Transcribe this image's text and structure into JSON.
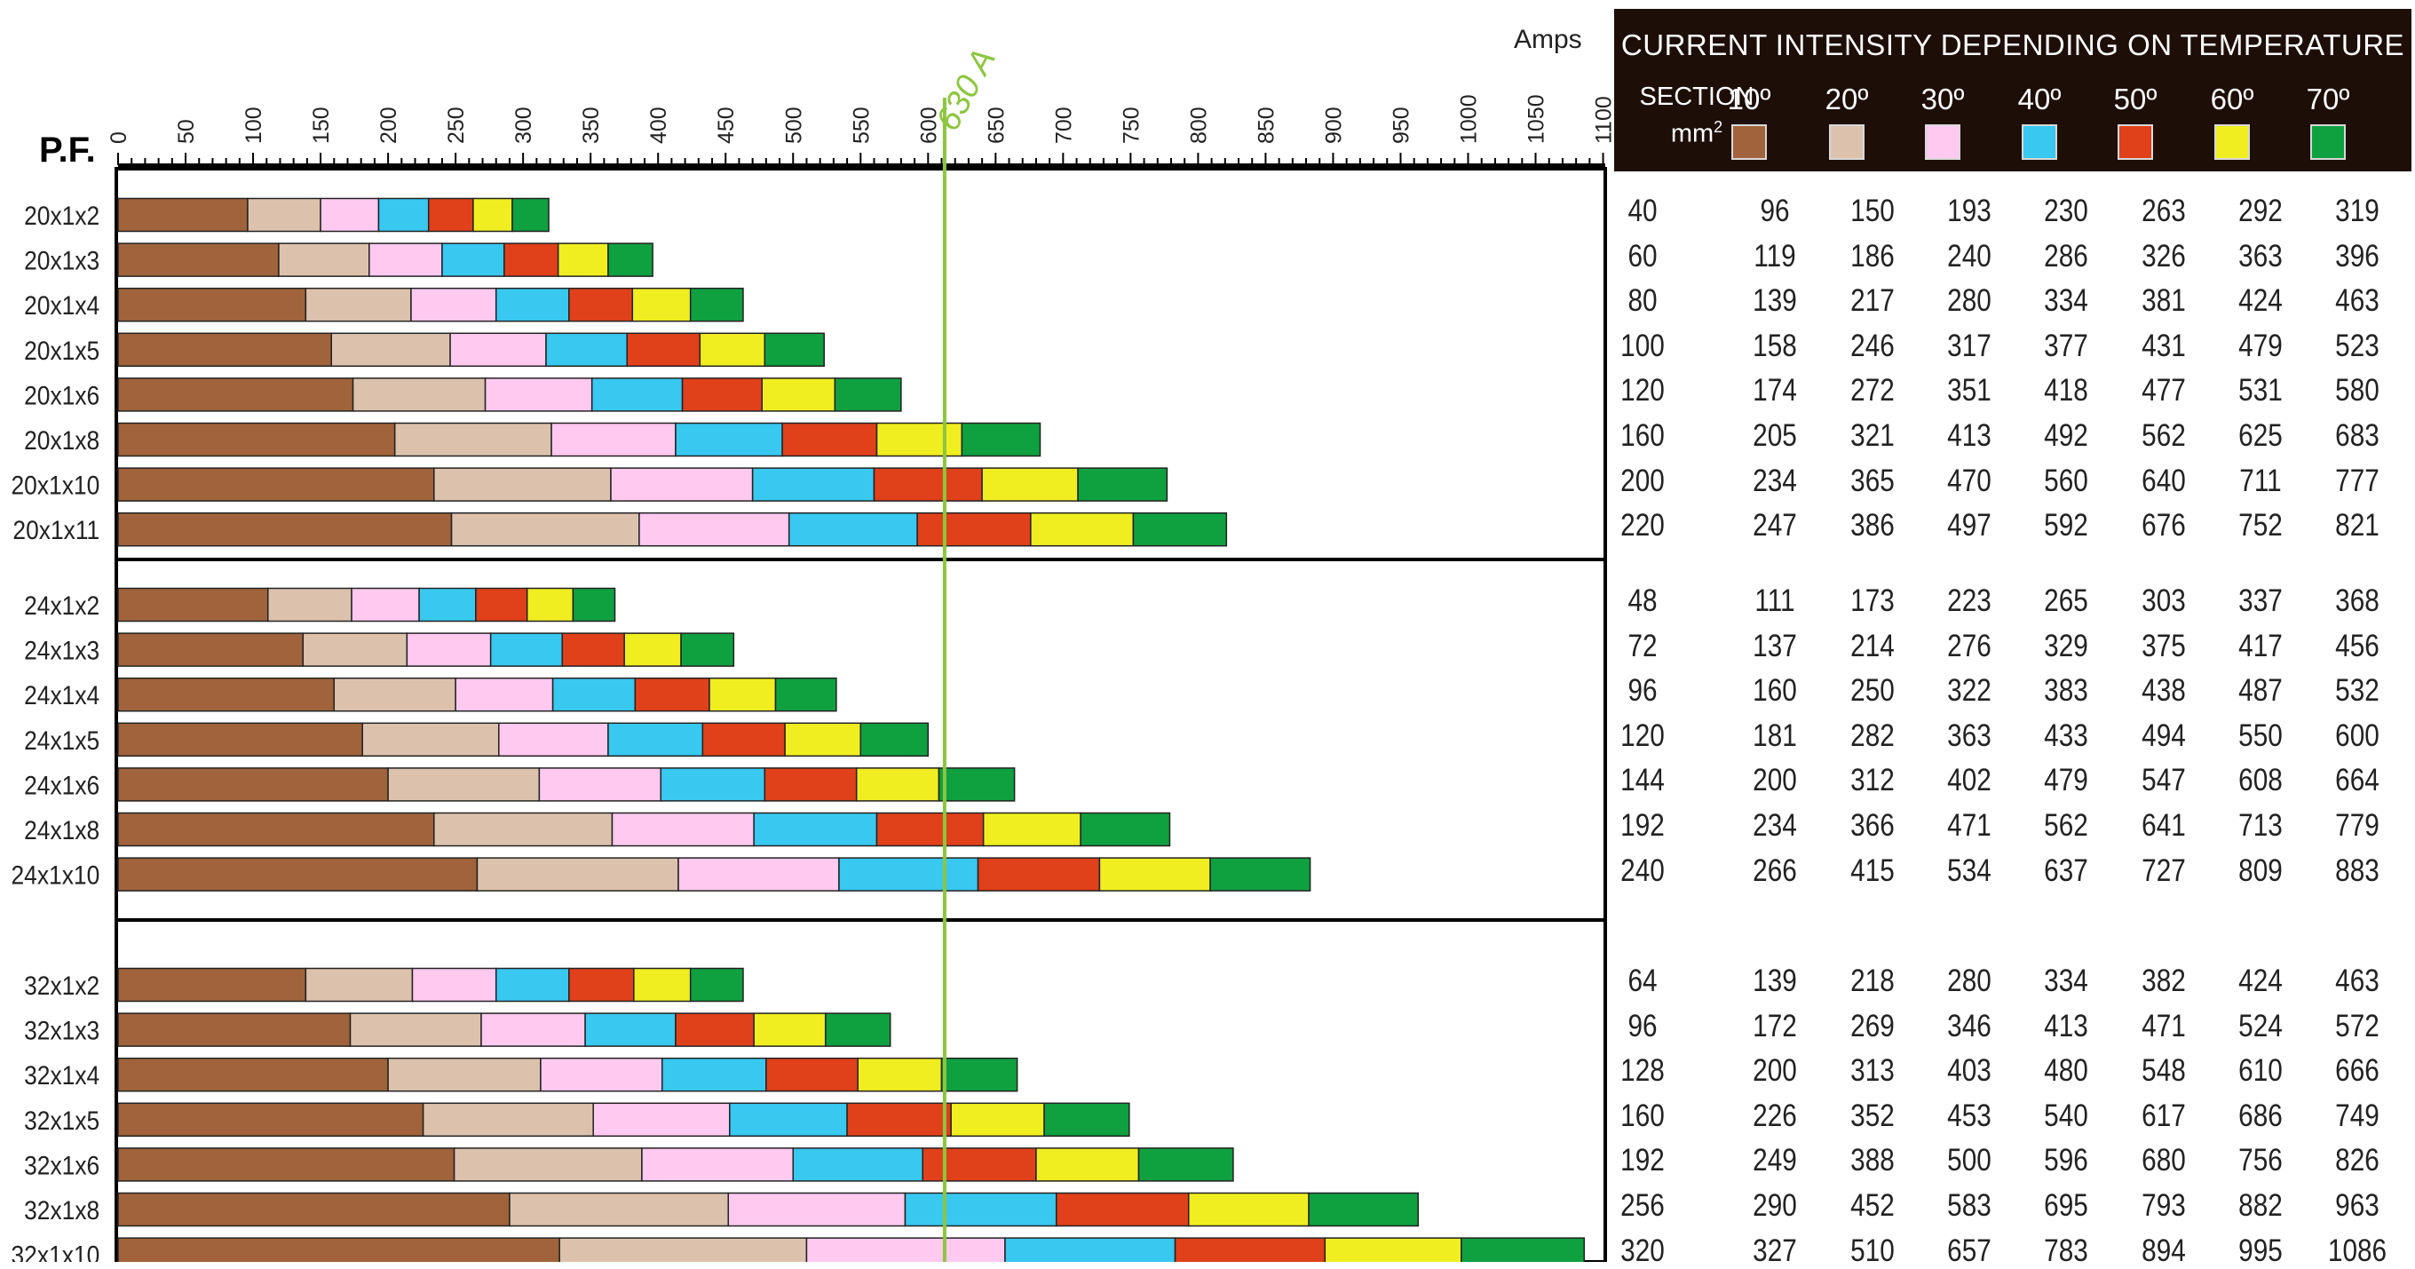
{
  "chart_data": {
    "type": "bar",
    "stacked": true,
    "y_title": "P.F.",
    "x_unit": "Amps",
    "reference_line": {
      "value": 630,
      "label": "630 A",
      "color": "#8cc63f"
    },
    "xlim": [
      0,
      1100
    ],
    "x_ticks": [
      0,
      50,
      100,
      150,
      200,
      250,
      300,
      350,
      400,
      450,
      500,
      550,
      600,
      650,
      700,
      750,
      800,
      850,
      900,
      950,
      1000,
      1050,
      1100
    ],
    "series": [
      {
        "name": "10º",
        "color": "#a0633b"
      },
      {
        "name": "20º",
        "color": "#dcc2ad"
      },
      {
        "name": "30º",
        "color": "#ffc9f0"
      },
      {
        "name": "40º",
        "color": "#38c8f0"
      },
      {
        "name": "50º",
        "color": "#e0401a"
      },
      {
        "name": "60º",
        "color": "#f0ee20"
      },
      {
        "name": "70º",
        "color": "#0fa040"
      }
    ],
    "groups": [
      {
        "rows": [
          {
            "label": "20x1x2",
            "section": 40,
            "values": [
              96,
              150,
              193,
              230,
              263,
              292,
              319
            ]
          },
          {
            "label": "20x1x3",
            "section": 60,
            "values": [
              119,
              186,
              240,
              286,
              326,
              363,
              396
            ]
          },
          {
            "label": "20x1x4",
            "section": 80,
            "values": [
              139,
              217,
              280,
              334,
              381,
              424,
              463
            ]
          },
          {
            "label": "20x1x5",
            "section": 100,
            "values": [
              158,
              246,
              317,
              377,
              431,
              479,
              523
            ]
          },
          {
            "label": "20x1x6",
            "section": 120,
            "values": [
              174,
              272,
              351,
              418,
              477,
              531,
              580
            ]
          },
          {
            "label": "20x1x8",
            "section": 160,
            "values": [
              205,
              321,
              413,
              492,
              562,
              625,
              683
            ]
          },
          {
            "label": "20x1x10",
            "section": 200,
            "values": [
              234,
              365,
              470,
              560,
              640,
              711,
              777
            ]
          },
          {
            "label": "20x1x11",
            "section": 220,
            "values": [
              247,
              386,
              497,
              592,
              676,
              752,
              821
            ]
          }
        ]
      },
      {
        "rows": [
          {
            "label": "24x1x2",
            "section": 48,
            "values": [
              111,
              173,
              223,
              265,
              303,
              337,
              368
            ]
          },
          {
            "label": "24x1x3",
            "section": 72,
            "values": [
              137,
              214,
              276,
              329,
              375,
              417,
              456
            ]
          },
          {
            "label": "24x1x4",
            "section": 96,
            "values": [
              160,
              250,
              322,
              383,
              438,
              487,
              532
            ]
          },
          {
            "label": "24x1x5",
            "section": 120,
            "values": [
              181,
              282,
              363,
              433,
              494,
              550,
              600
            ]
          },
          {
            "label": "24x1x6",
            "section": 144,
            "values": [
              200,
              312,
              402,
              479,
              547,
              608,
              664
            ]
          },
          {
            "label": "24x1x8",
            "section": 192,
            "values": [
              234,
              366,
              471,
              562,
              641,
              713,
              779
            ]
          },
          {
            "label": "24x1x10",
            "section": 240,
            "values": [
              266,
              415,
              534,
              637,
              727,
              809,
              883
            ]
          }
        ]
      },
      {
        "rows": [
          {
            "label": "32x1x2",
            "section": 64,
            "values": [
              139,
              218,
              280,
              334,
              382,
              424,
              463
            ]
          },
          {
            "label": "32x1x3",
            "section": 96,
            "values": [
              172,
              269,
              346,
              413,
              471,
              524,
              572
            ]
          },
          {
            "label": "32x1x4",
            "section": 128,
            "values": [
              200,
              313,
              403,
              480,
              548,
              610,
              666
            ]
          },
          {
            "label": "32x1x5",
            "section": 160,
            "values": [
              226,
              352,
              453,
              540,
              617,
              686,
              749
            ]
          },
          {
            "label": "32x1x6",
            "section": 192,
            "values": [
              249,
              388,
              500,
              596,
              680,
              756,
              826
            ]
          },
          {
            "label": "32x1x8",
            "section": 256,
            "values": [
              290,
              452,
              583,
              695,
              793,
              882,
              963
            ]
          },
          {
            "label": "32x1x10",
            "section": 320,
            "values": [
              327,
              510,
              657,
              783,
              894,
              995,
              1086
            ]
          }
        ]
      }
    ]
  },
  "table": {
    "title": "CURRENT INTENSITY DEPENDING ON TEMPERATURE",
    "section_label": "SECTION",
    "section_unit": "mm",
    "section_unit_exp": "2"
  }
}
